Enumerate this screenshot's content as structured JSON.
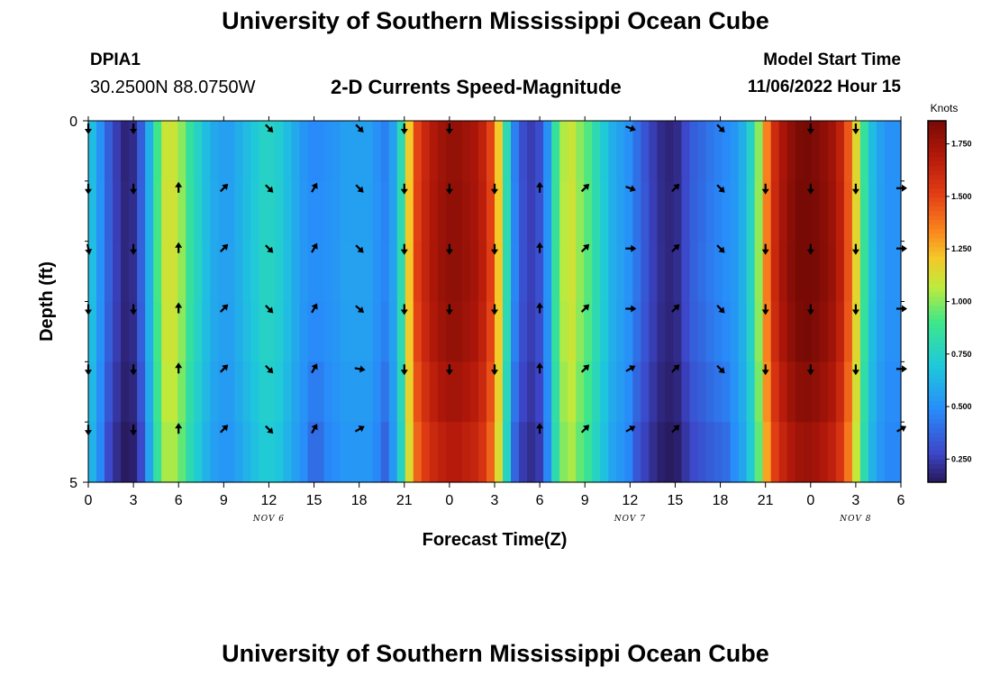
{
  "header": {
    "title": "University of Southern Mississippi Ocean Cube",
    "station": "DPIA1",
    "coordinates": "30.2500N  88.0750W",
    "subtitle": "2-D Currents Speed-Magnitude",
    "model_start_label": "Model Start Time",
    "model_start_value": "11/06/2022 Hour 15"
  },
  "footer": {
    "title": "University of Southern Mississippi Ocean Cube"
  },
  "chart_data": {
    "type": "heatmap",
    "title": "2-D Currents Speed-Magnitude",
    "xlabel": "Forecast Time(Z)",
    "ylabel": "Depth (ft)",
    "x_ticks": [
      "0",
      "3",
      "6",
      "9",
      "12",
      "15",
      "18",
      "21",
      "0",
      "3",
      "6",
      "9",
      "12",
      "15",
      "18",
      "21",
      "0",
      "3",
      "6"
    ],
    "date_labels": [
      {
        "label": "NOV 6",
        "at_tick": 4
      },
      {
        "label": "NOV 7",
        "at_tick": 12
      },
      {
        "label": "NOV 8",
        "at_tick": 17
      }
    ],
    "y_ticks": [
      "0",
      "5"
    ],
    "ylim": [
      0,
      5
    ],
    "colorbar": {
      "title": "Knots",
      "min": 0.14,
      "max": 1.86,
      "ticks": [
        "1.750",
        "1.500",
        "1.250",
        "1.000",
        "0.750",
        "0.500",
        "0.250"
      ],
      "tick_values": [
        1.75,
        1.5,
        1.25,
        1.0,
        0.75,
        0.5,
        0.25
      ]
    },
    "speed_profile_knots": [
      0.65,
      0.5,
      0.35,
      0.25,
      0.18,
      0.2,
      0.35,
      0.6,
      0.9,
      1.1,
      1.1,
      1.0,
      0.85,
      0.75,
      0.65,
      0.58,
      0.55,
      0.55,
      0.6,
      0.65,
      0.7,
      0.75,
      0.75,
      0.72,
      0.65,
      0.58,
      0.52,
      0.48,
      0.48,
      0.5,
      0.52,
      0.55,
      0.55,
      0.55,
      0.55,
      0.5,
      0.45,
      0.55,
      0.8,
      1.2,
      1.5,
      1.62,
      1.7,
      1.75,
      1.78,
      1.78,
      1.75,
      1.72,
      1.65,
      1.5,
      1.2,
      0.8,
      0.45,
      0.3,
      0.25,
      0.3,
      0.5,
      0.85,
      1.05,
      1.1,
      1.0,
      0.92,
      0.8,
      0.7,
      0.6,
      0.55,
      0.5,
      0.4,
      0.32,
      0.25,
      0.2,
      0.18,
      0.2,
      0.28,
      0.35,
      0.38,
      0.42,
      0.45,
      0.48,
      0.52,
      0.6,
      0.75,
      1.0,
      1.35,
      1.6,
      1.72,
      1.8,
      1.85,
      1.86,
      1.84,
      1.8,
      1.75,
      1.65,
      1.45,
      1.15,
      0.85,
      0.65,
      0.55,
      0.5,
      0.5
    ],
    "depth_modifier": [
      1.0,
      1.02,
      1.03,
      1.0,
      0.92,
      0.82
    ],
    "vector_columns": [
      0,
      3,
      6,
      9,
      12,
      15,
      18,
      21,
      24,
      27,
      30,
      33,
      36,
      39,
      42,
      45,
      48,
      51,
      54
    ],
    "vector_rows": [
      0,
      1,
      2,
      3,
      4,
      5
    ],
    "vector_directions_deg": [
      [
        180,
        180,
        170,
        180,
        180,
        180
      ],
      [
        180,
        180,
        180,
        180,
        180,
        180
      ],
      [
        null,
        0,
        0,
        0,
        0,
        0
      ],
      [
        null,
        45,
        45,
        45,
        45,
        45
      ],
      [
        135,
        135,
        135,
        135,
        135,
        135
      ],
      [
        null,
        30,
        30,
        30,
        30,
        30
      ],
      [
        135,
        135,
        135,
        130,
        100,
        60
      ],
      [
        180,
        180,
        180,
        180,
        180,
        null
      ],
      [
        180,
        180,
        180,
        180,
        180,
        null
      ],
      [
        null,
        180,
        180,
        180,
        180,
        null
      ],
      [
        null,
        0,
        0,
        0,
        0,
        0
      ],
      [
        null,
        45,
        45,
        45,
        45,
        45
      ],
      [
        110,
        110,
        90,
        90,
        60,
        60
      ],
      [
        null,
        45,
        45,
        45,
        45,
        45
      ],
      [
        135,
        135,
        135,
        135,
        135,
        null
      ],
      [
        null,
        180,
        180,
        180,
        180,
        null
      ],
      [
        180,
        180,
        180,
        180,
        180,
        null
      ],
      [
        180,
        180,
        180,
        180,
        180,
        null
      ],
      [
        null,
        90,
        90,
        90,
        90,
        60
      ]
    ]
  }
}
